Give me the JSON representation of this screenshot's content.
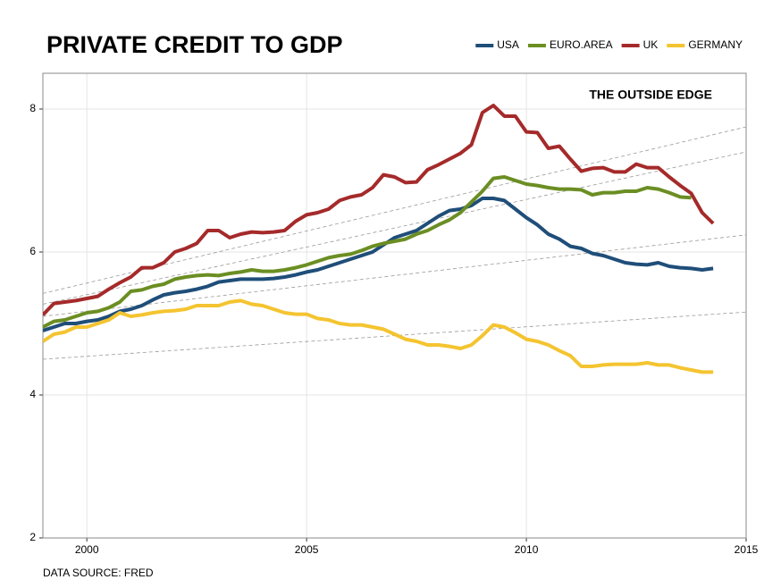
{
  "chart_data": {
    "type": "line",
    "title": "PRIVATE CREDIT TO GDP",
    "subtitle": "THE OUTSIDE EDGE",
    "caption": "DATA SOURCE: FRED",
    "x": [
      1999,
      1999.25,
      1999.5,
      1999.75,
      2000,
      2000.25,
      2000.5,
      2000.75,
      2001,
      2001.25,
      2001.5,
      2001.75,
      2002,
      2002.25,
      2002.5,
      2002.75,
      2003,
      2003.25,
      2003.5,
      2003.75,
      2004,
      2004.25,
      2004.5,
      2004.75,
      2005,
      2005.25,
      2005.5,
      2005.75,
      2006,
      2006.25,
      2006.5,
      2006.75,
      2007,
      2007.25,
      2007.5,
      2007.75,
      2008,
      2008.25,
      2008.5,
      2008.75,
      2009,
      2009.25,
      2009.5,
      2009.75,
      2010,
      2010.25,
      2010.5,
      2010.75,
      2011,
      2011.25,
      2011.5,
      2011.75,
      2012,
      2012.25,
      2012.5,
      2012.75,
      2013,
      2013.25,
      2013.5,
      2013.75,
      2014,
      2014.25
    ],
    "series": [
      {
        "name": "USA",
        "color": "#1f4e79",
        "values": [
          4.9,
          4.95,
          5.0,
          5.0,
          5.03,
          5.05,
          5.1,
          5.17,
          5.2,
          5.25,
          5.33,
          5.4,
          5.43,
          5.45,
          5.48,
          5.52,
          5.58,
          5.6,
          5.62,
          5.62,
          5.62,
          5.63,
          5.65,
          5.68,
          5.72,
          5.75,
          5.8,
          5.85,
          5.9,
          5.95,
          6.0,
          6.1,
          6.2,
          6.25,
          6.3,
          6.4,
          6.5,
          6.58,
          6.6,
          6.65,
          6.75,
          6.75,
          6.72,
          6.6,
          6.48,
          6.38,
          6.25,
          6.18,
          6.08,
          6.05,
          5.98,
          5.95,
          5.9,
          5.85,
          5.83,
          5.82,
          5.85,
          5.8,
          5.78,
          5.77,
          5.75,
          5.77
        ]
      },
      {
        "name": "EURO.AREA",
        "color": "#6b8e23",
        "values": [
          4.95,
          5.03,
          5.05,
          5.1,
          5.15,
          5.17,
          5.22,
          5.3,
          5.45,
          5.47,
          5.52,
          5.55,
          5.62,
          5.65,
          5.67,
          5.68,
          5.67,
          5.7,
          5.72,
          5.75,
          5.73,
          5.73,
          5.75,
          5.78,
          5.82,
          5.87,
          5.92,
          5.95,
          5.97,
          6.02,
          6.08,
          6.12,
          6.15,
          6.18,
          6.25,
          6.3,
          6.38,
          6.45,
          6.55,
          6.7,
          6.85,
          7.03,
          7.05,
          7.0,
          6.95,
          6.93,
          6.9,
          6.88,
          6.88,
          6.87,
          6.8,
          6.83,
          6.83,
          6.85,
          6.85,
          6.9,
          6.88,
          6.83,
          6.77,
          6.76,
          null,
          null
        ]
      },
      {
        "name": "UK",
        "color": "#a52a2a",
        "values": [
          5.12,
          5.28,
          5.3,
          5.32,
          5.35,
          5.38,
          5.48,
          5.57,
          5.65,
          5.78,
          5.78,
          5.85,
          6.0,
          6.05,
          6.12,
          6.3,
          6.3,
          6.2,
          6.25,
          6.28,
          6.27,
          6.28,
          6.3,
          6.43,
          6.52,
          6.55,
          6.6,
          6.72,
          6.77,
          6.8,
          6.9,
          7.08,
          7.05,
          6.97,
          6.98,
          7.15,
          7.22,
          7.3,
          7.38,
          7.5,
          7.95,
          8.05,
          7.9,
          7.9,
          7.68,
          7.67,
          7.45,
          7.48,
          7.3,
          7.13,
          7.17,
          7.18,
          7.12,
          7.12,
          7.23,
          7.18,
          7.18,
          7.05,
          6.93,
          6.82,
          6.55,
          6.4
        ]
      },
      {
        "name": "GERMANY",
        "color": "#f4c430",
        "values": [
          4.75,
          4.85,
          4.88,
          4.95,
          4.95,
          5.0,
          5.05,
          5.15,
          5.1,
          5.12,
          5.15,
          5.17,
          5.18,
          5.2,
          5.25,
          5.25,
          5.25,
          5.3,
          5.32,
          5.27,
          5.25,
          5.2,
          5.15,
          5.13,
          5.13,
          5.07,
          5.05,
          5.0,
          4.98,
          4.98,
          4.95,
          4.92,
          4.85,
          4.78,
          4.75,
          4.7,
          4.7,
          4.68,
          4.65,
          4.7,
          4.83,
          4.98,
          4.95,
          4.87,
          4.78,
          4.75,
          4.7,
          4.62,
          4.55,
          4.4,
          4.4,
          4.42,
          4.43,
          4.43,
          4.43,
          4.45,
          4.42,
          4.42,
          4.38,
          4.35,
          4.32,
          4.32
        ]
      }
    ],
    "trend_lines": [
      {
        "x": [
          1999,
          2015
        ],
        "values": [
          5.42,
          7.75
        ]
      },
      {
        "x": [
          1999,
          2015
        ],
        "values": [
          5.27,
          7.4
        ]
      },
      {
        "x": [
          1999,
          2015
        ],
        "values": [
          5.1,
          6.24
        ]
      },
      {
        "x": [
          1999,
          2015
        ],
        "values": [
          4.5,
          5.16
        ]
      }
    ],
    "xlim": [
      1999,
      2015
    ],
    "xticks": [
      2000,
      2005,
      2010,
      2015
    ],
    "ylim": [
      2,
      8.5
    ],
    "yticks": [
      2,
      4,
      6,
      8
    ],
    "grid": true,
    "legend": "top-right"
  }
}
